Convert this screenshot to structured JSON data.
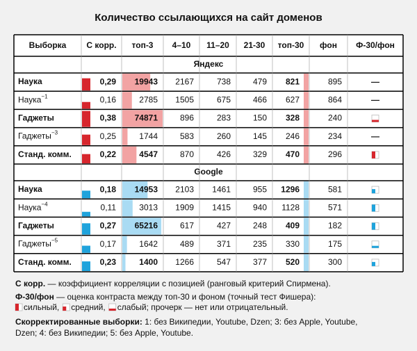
{
  "title": "Количество ссылающихся на сайт доменов",
  "table": {
    "columns": [
      "Выборка",
      "С корр.",
      "топ-3",
      "4–10",
      "11–20",
      "21-30",
      "топ-30",
      "фон",
      "Ф-30/фон"
    ],
    "sections": [
      {
        "name": "Яндекс",
        "rows": [
          {
            "name": "Наука",
            "bold": true,
            "cells": [
              {
                "value": 0.29,
                "label": "0,29"
              },
              19943,
              2167,
              738,
              479,
              821,
              895,
              "—"
            ]
          },
          {
            "name": "Наука",
            "sup": "−1",
            "cells": [
              {
                "value": 0.16,
                "label": "0,16"
              },
              2785,
              1505,
              675,
              466,
              627,
              864,
              "—"
            ]
          },
          {
            "name": "Гаджеты",
            "bold": true,
            "cells": [
              {
                "value": 0.38,
                "label": "0,38"
              },
              74871,
              896,
              283,
              150,
              328,
              240,
              null
            ]
          },
          {
            "name": "Гаджеты",
            "sup": "−3",
            "cells": [
              {
                "value": 0.25,
                "label": "0,25"
              },
              1744,
              583,
              260,
              145,
              246,
              234,
              "—"
            ]
          },
          {
            "name": "Станд. комм.",
            "bold": true,
            "cells": [
              {
                "value": 0.22,
                "label": "0,22"
              },
              4547,
              870,
              426,
              329,
              470,
              296,
              null
            ]
          }
        ]
      },
      {
        "name": "Google",
        "rows": [
          {
            "name": "Наука",
            "bold": true,
            "cells": [
              {
                "value": 0.18,
                "label": "0,18"
              },
              14953,
              2103,
              1461,
              955,
              1296,
              581,
              null
            ]
          },
          {
            "name": "Наука",
            "sup": "−4",
            "cells": [
              {
                "value": 0.11,
                "label": "0,11"
              },
              3013,
              1909,
              1415,
              940,
              1128,
              571,
              null
            ]
          },
          {
            "name": "Гаджеты",
            "bold": true,
            "cells": [
              {
                "value": 0.27,
                "label": "0,27"
              },
              65216,
              617,
              427,
              248,
              409,
              182,
              null
            ]
          },
          {
            "name": "Гаджеты",
            "sup": "−5",
            "cells": [
              {
                "value": 0.17,
                "label": "0,17"
              },
              1642,
              489,
              371,
              235,
              330,
              175,
              null
            ]
          },
          {
            "name": "Станд. комм.",
            "bold": true,
            "cells": [
              {
                "value": 0.23,
                "label": "0,23"
              },
              1400,
              1266,
              547,
              377,
              520,
              300,
              null
            ]
          }
        ]
      }
    ]
  },
  "notes": {
    "corr": {
      "term": "С корр.",
      "text": " — коэффициент корреляции с позицией (ранговый критерий Спирмена)."
    },
    "contrast": {
      "term": "Ф-30/фон",
      "text": " — оценка контраста между топ-30 и фоном (точный тест Фишера):"
    },
    "legend": [
      "сильный,",
      "средний,",
      "слабый; прочерк — нет или отрицательный."
    ],
    "adjusted": {
      "term": "Скорректированные выборки:",
      "text": " 1: без Википедии, Youtube, Dzen; 3: без Apple, Youtube,",
      "text2": "Dzen; 4: без Википедии; 5: без Apple, Youtube."
    }
  }
}
